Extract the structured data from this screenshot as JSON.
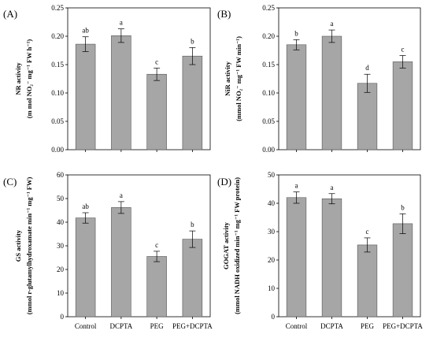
{
  "chart_data": [
    {
      "type": "bar",
      "panel_label": "(A)",
      "ylabel": "NR activity",
      "ylabel_line2": "(m mol NO₂⁻ mg⁻¹ FW h⁻¹)",
      "categories": [
        "Control",
        "DCPTA",
        "PEG",
        "PEG+DCPTA"
      ],
      "values": [
        0.186,
        0.201,
        0.133,
        0.165
      ],
      "errors": [
        0.013,
        0.012,
        0.011,
        0.015
      ],
      "significance": [
        "ab",
        "a",
        "c",
        "b"
      ],
      "ylim": [
        0,
        0.25
      ],
      "yticks": [
        "0.00",
        "0.05",
        "0.10",
        "0.15",
        "0.20",
        "0.25"
      ],
      "show_categories": false
    },
    {
      "type": "bar",
      "panel_label": "(B)",
      "ylabel": "NiR activity",
      "ylabel_line2": "(mmol NO₂⁻ mg⁻¹ FW min⁻¹)",
      "categories": [
        "Control",
        "DCPTA",
        "PEG",
        "PEG+DCPTA"
      ],
      "values": [
        0.185,
        0.2,
        0.117,
        0.155
      ],
      "errors": [
        0.009,
        0.011,
        0.016,
        0.011
      ],
      "significance": [
        "b",
        "a",
        "d",
        "c"
      ],
      "ylim": [
        0,
        0.25
      ],
      "yticks": [
        "0.00",
        "0.05",
        "0.10",
        "0.15",
        "0.20",
        "0.25"
      ],
      "show_categories": false
    },
    {
      "type": "bar",
      "panel_label": "(C)",
      "ylabel": "GS activity",
      "ylabel_line2": "(mmol r-glutamylhydroxamate min⁻¹ mg⁻¹ FW)",
      "categories": [
        "Control",
        "DCPTA",
        "PEG",
        "PEG+DCPTA"
      ],
      "values": [
        41.8,
        46.2,
        25.5,
        32.8
      ],
      "errors": [
        2.2,
        2.5,
        2.2,
        3.5
      ],
      "significance": [
        "ab",
        "a",
        "c",
        "b"
      ],
      "ylim": [
        0,
        60
      ],
      "yticks": [
        "0",
        "10",
        "20",
        "30",
        "40",
        "50",
        "60"
      ],
      "show_categories": true
    },
    {
      "type": "bar",
      "panel_label": "(D)",
      "ylabel": "GOGAT activity",
      "ylabel_line2": "(mmol NADH oxidized min⁻¹ mg⁻¹ FW protein)",
      "categories": [
        "Control",
        "DCPTA",
        "PEG",
        "PEG+DCPTA"
      ],
      "values": [
        42.0,
        41.6,
        25.3,
        32.8
      ],
      "errors": [
        2.0,
        1.8,
        2.5,
        3.5
      ],
      "significance": [
        "a",
        "a",
        "c",
        "b"
      ],
      "ylim": [
        0,
        50
      ],
      "yticks": [
        "0",
        "10",
        "20",
        "30",
        "40",
        "50"
      ],
      "show_categories": true
    }
  ]
}
